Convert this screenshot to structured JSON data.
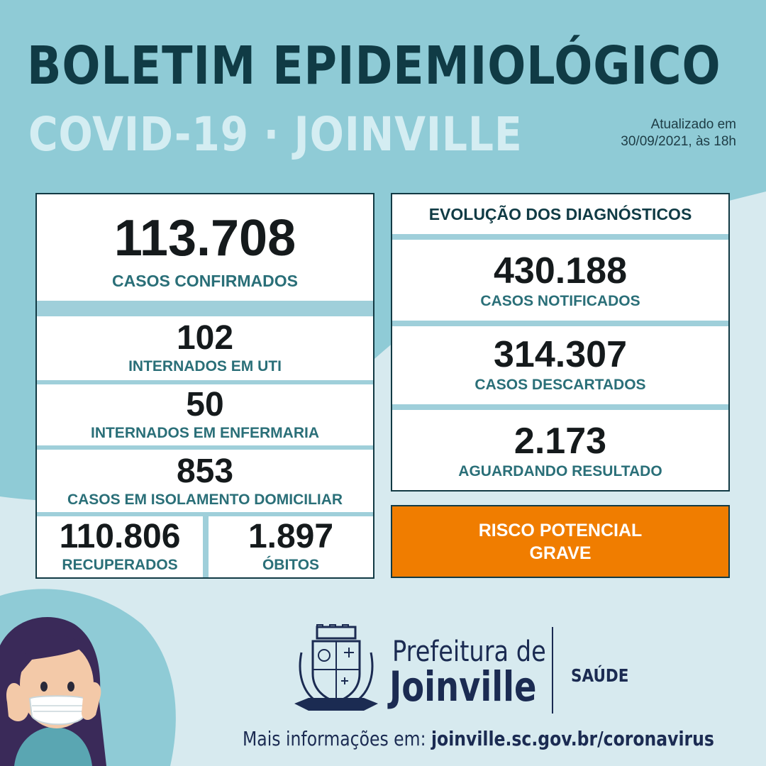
{
  "header": {
    "title": "BOLETIM EPIDEMIOLÓGICO",
    "subtitle": "COVID-19 · JOINVILLE",
    "updated_line1": "Atualizado em",
    "updated_line2": "30/09/2021, às 18h"
  },
  "left_panel": {
    "confirmed": {
      "value": "113.708",
      "label": "CASOS CONFIRMADOS"
    },
    "uti": {
      "value": "102",
      "label": "INTERNADOS EM UTI"
    },
    "ward": {
      "value": "50",
      "label": "INTERNADOS EM ENFERMARIA"
    },
    "isolation": {
      "value": "853",
      "label": "CASOS EM ISOLAMENTO DOMICILIAR"
    },
    "recovered": {
      "value": "110.806",
      "label": "RECUPERADOS"
    },
    "deaths": {
      "value": "1.897",
      "label": "ÓBITOS"
    }
  },
  "right_panel": {
    "title": "EVOLUÇÃO DOS DIAGNÓSTICOS",
    "notified": {
      "value": "430.188",
      "label": "CASOS NOTIFICADOS"
    },
    "discarded": {
      "value": "314.307",
      "label": "CASOS DESCARTADOS"
    },
    "awaiting": {
      "value": "2.173",
      "label": "AGUARDANDO RESULTADO"
    }
  },
  "risk": {
    "line1": "RISCO POTENCIAL",
    "line2": "GRAVE",
    "color": "#f07d00"
  },
  "branding": {
    "logo_icon": "joinville-coat-of-arms",
    "org_line1": "Prefeitura de",
    "org_line2": "Joinville",
    "department": "SAÚDE"
  },
  "footer": {
    "prefix": "Mais informações em:",
    "url": "joinville.sc.gov.br/coronavirus"
  },
  "illustration": "woman-wearing-mask-illustration",
  "colors": {
    "dark_teal": "#103b45",
    "label_teal": "#2a6f78",
    "background": "#d7eaef",
    "band": "#8fcbd6"
  }
}
